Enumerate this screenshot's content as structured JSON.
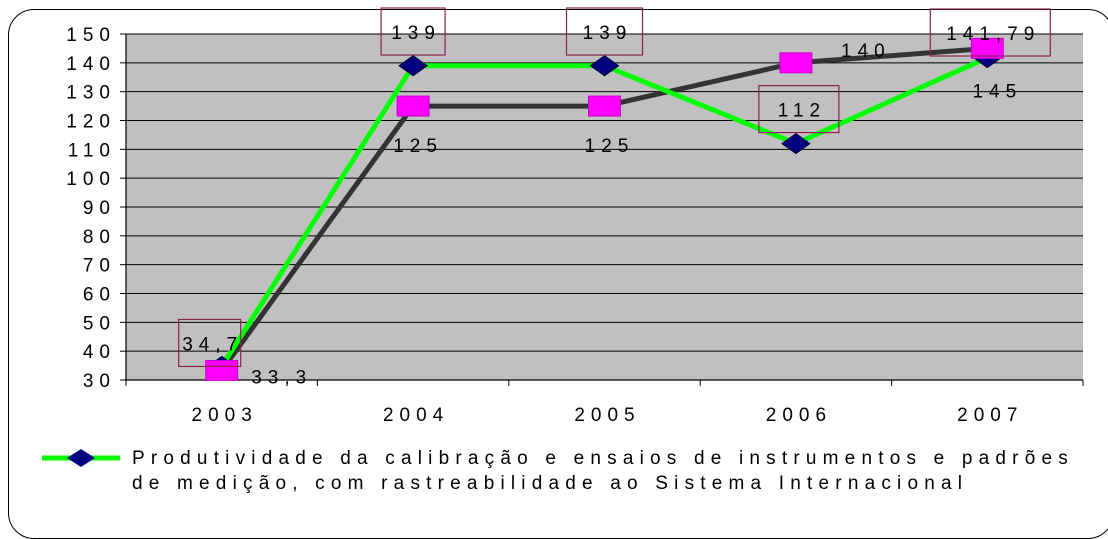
{
  "chart_data": {
    "type": "line",
    "categories": [
      "2003",
      "2004",
      "2005",
      "2006",
      "2007"
    ],
    "ylim": [
      30,
      150
    ],
    "yticks": [
      "150",
      "140",
      "130",
      "120",
      "110",
      "100",
      "90",
      "80",
      "70",
      "60",
      "50",
      "40",
      "30"
    ],
    "grid": true,
    "legend_position": "bottom",
    "series": [
      {
        "name": "Produtividade da calibração e ensaios de instrumentos e padrões de medição, com rastreabilidade ao Sistema Internacional",
        "line_color": "#00ff00",
        "marker": "diamond",
        "marker_color": "#000080",
        "values": [
          34.7,
          139,
          139,
          112,
          141.79
        ],
        "labels": [
          "34,7",
          "139",
          "139",
          "112",
          "141,79"
        ]
      },
      {
        "line_color": "#333333",
        "marker": "square",
        "marker_color": "#ff00ff",
        "values": [
          33.3,
          125,
          125,
          140,
          145
        ],
        "labels": [
          "33,3",
          "125",
          "125",
          "140",
          "145"
        ]
      }
    ],
    "colors": {
      "plot_bg": "#c0c0c0",
      "grid": "#000000"
    }
  }
}
